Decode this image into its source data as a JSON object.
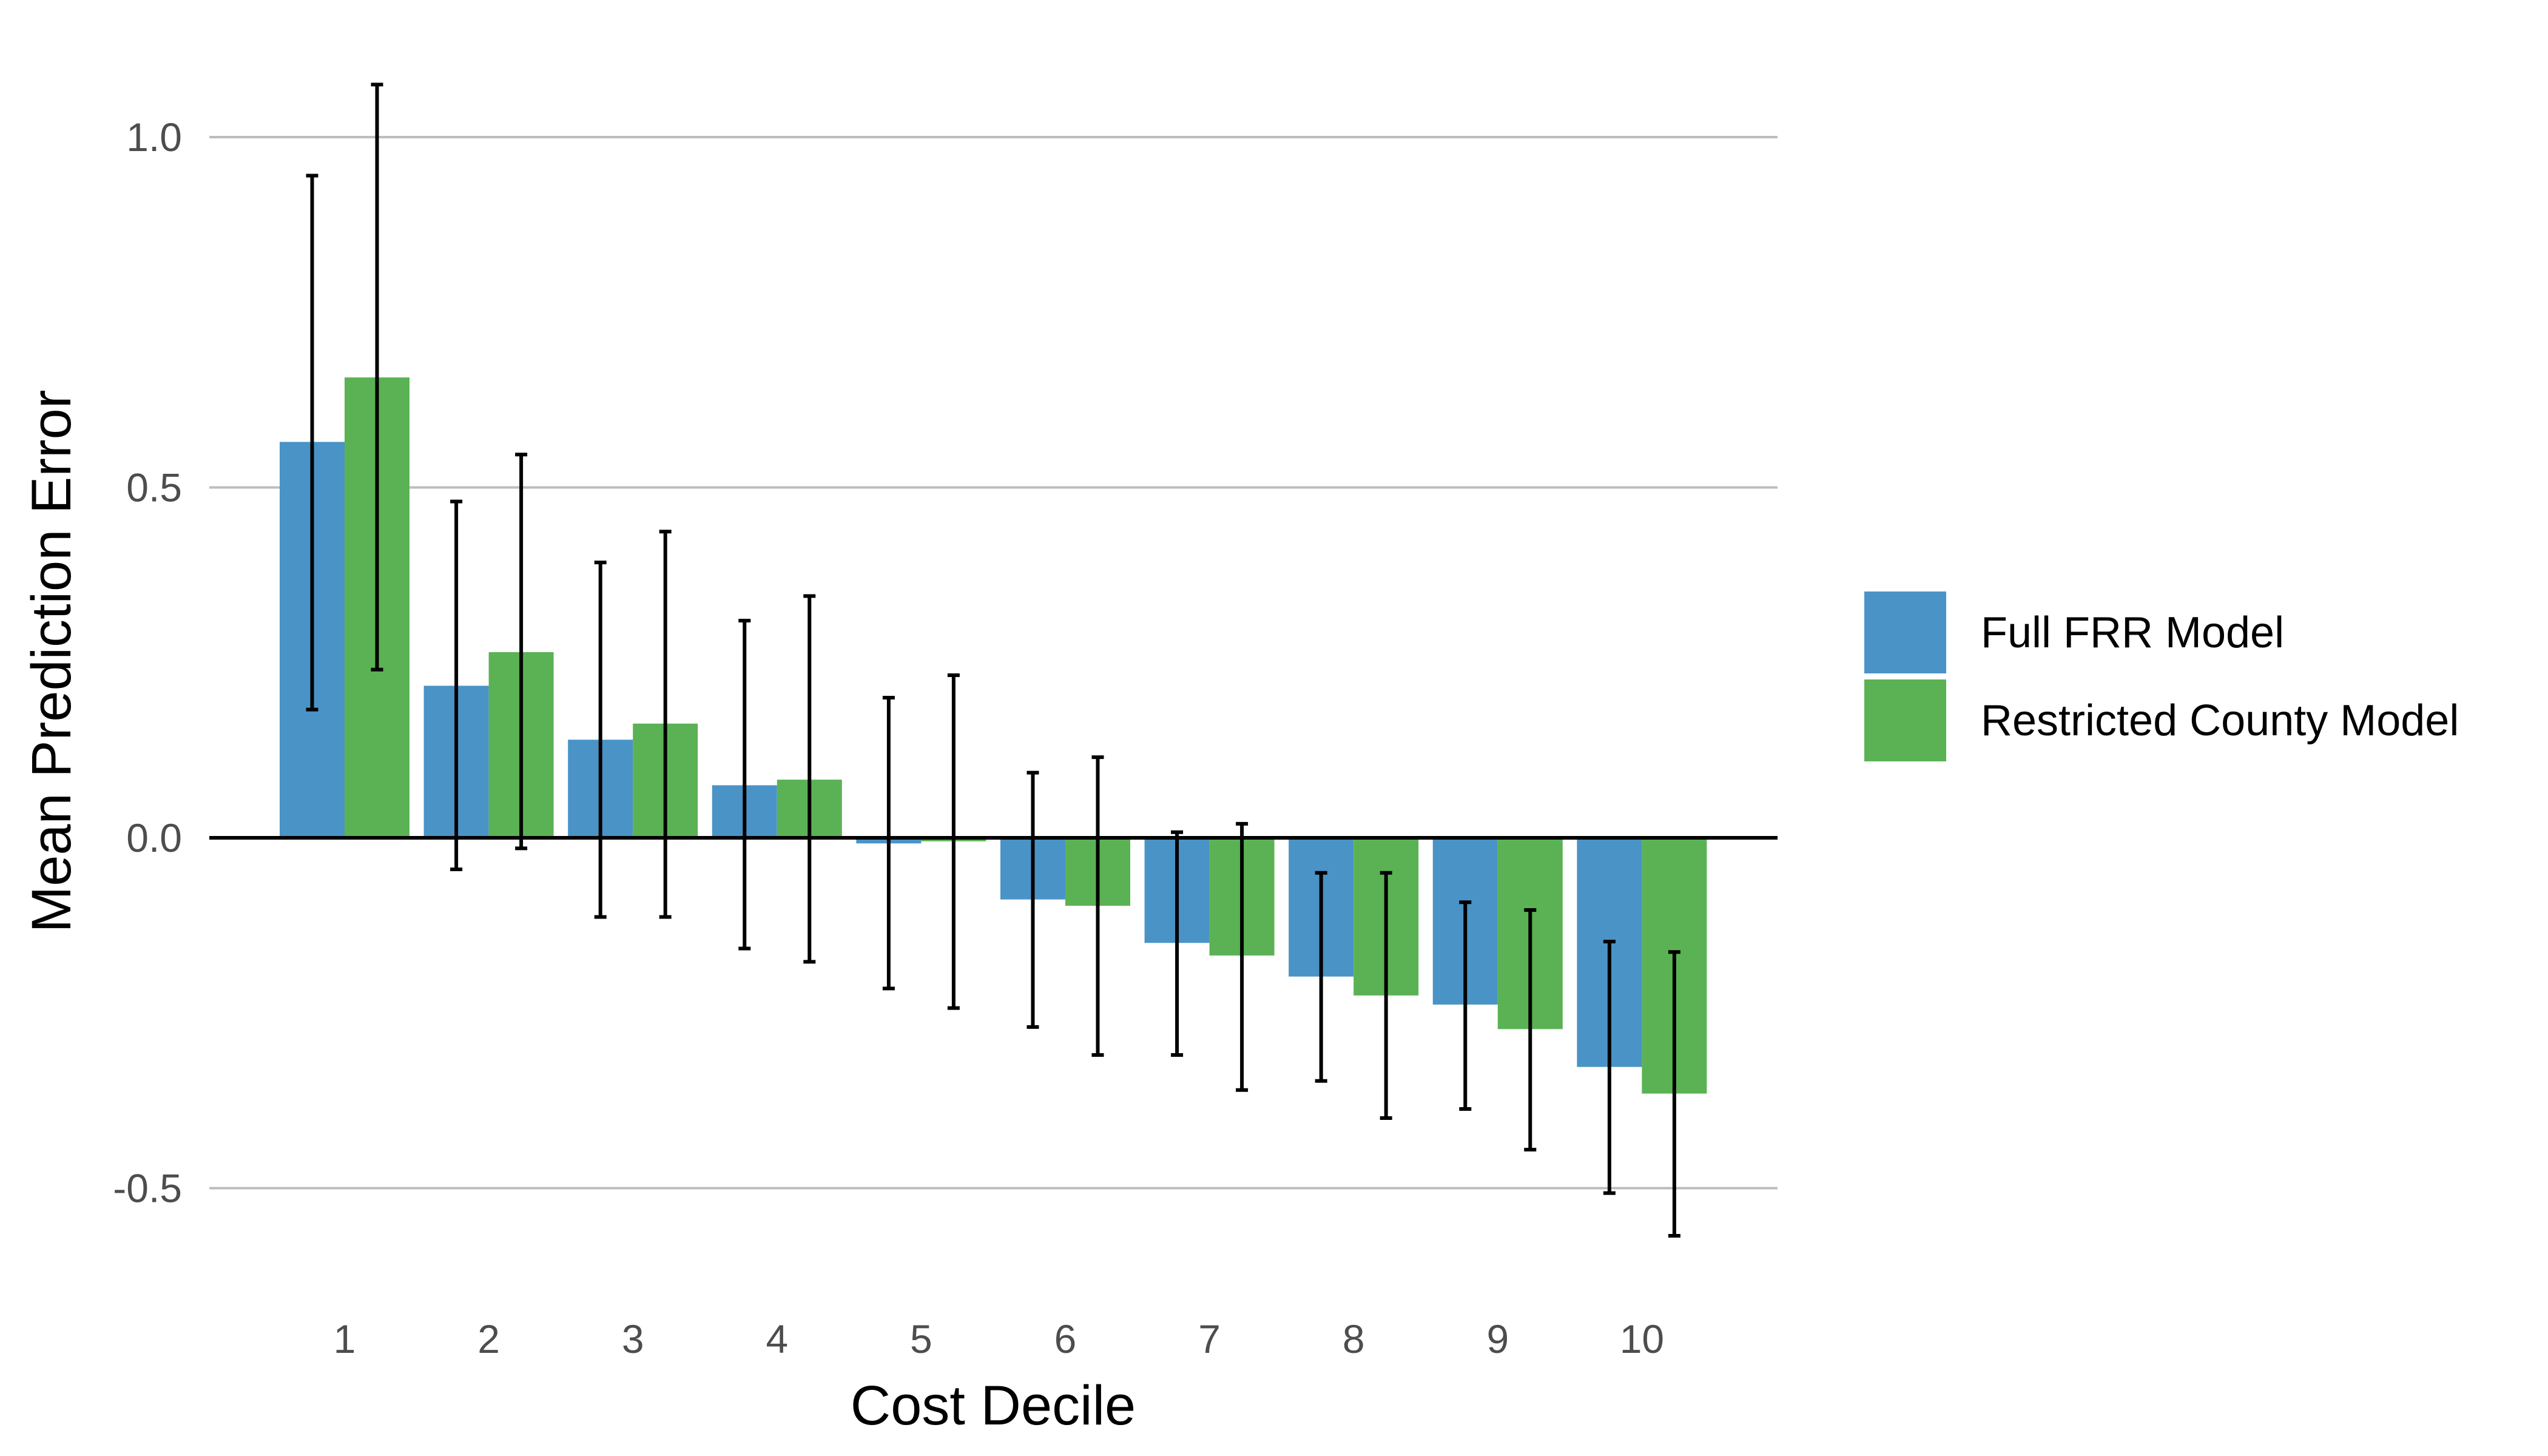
{
  "chart_data": {
    "type": "bar",
    "xlabel": "Cost Decile",
    "ylabel": "Mean Prediction Error",
    "categories": [
      "1",
      "2",
      "3",
      "4",
      "5",
      "6",
      "7",
      "8",
      "9",
      "10"
    ],
    "ylim": [
      -0.64,
      1.1
    ],
    "yticks": [
      1.0,
      0.5,
      0.0,
      -0.5
    ],
    "ytick_labels": [
      "1.0",
      "0.5",
      "0.0",
      "-0.5"
    ],
    "grid": "horizontal major",
    "zero_line": true,
    "legend_position": "right",
    "series": [
      {
        "name": "Full FRR Model",
        "color": "#4a93c6",
        "values": [
          0.565,
          0.217,
          0.14,
          0.075,
          -0.008,
          -0.088,
          -0.15,
          -0.198,
          -0.238,
          -0.327
        ],
        "error_low": [
          0.183,
          -0.045,
          -0.113,
          -0.158,
          -0.215,
          -0.27,
          -0.31,
          -0.347,
          -0.387,
          -0.507
        ],
        "error_high": [
          0.945,
          0.48,
          0.393,
          0.31,
          0.2,
          0.093,
          0.008,
          -0.05,
          -0.092,
          -0.148
        ]
      },
      {
        "name": "Restricted County Model",
        "color": "#5bb254",
        "values": [
          0.657,
          0.265,
          0.163,
          0.083,
          -0.005,
          -0.097,
          -0.168,
          -0.225,
          -0.273,
          -0.365
        ],
        "error_low": [
          0.24,
          -0.015,
          -0.113,
          -0.177,
          -0.243,
          -0.31,
          -0.36,
          -0.4,
          -0.445,
          -0.568
        ],
        "error_high": [
          1.075,
          0.547,
          0.437,
          0.345,
          0.232,
          0.115,
          0.02,
          -0.05,
          -0.103,
          -0.163
        ]
      }
    ]
  }
}
